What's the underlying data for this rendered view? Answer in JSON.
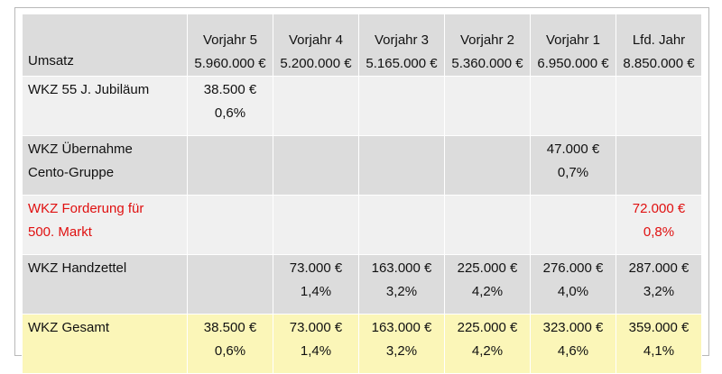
{
  "header": {
    "label": "Umsatz",
    "columns": [
      {
        "year": "Vorjahr 5",
        "revenue": "5.960.000 €"
      },
      {
        "year": "Vorjahr 4",
        "revenue": "5.200.000 €"
      },
      {
        "year": "Vorjahr 3",
        "revenue": "5.165.000 €"
      },
      {
        "year": "Vorjahr 2",
        "revenue": "5.360.000 €"
      },
      {
        "year": "Vorjahr 1",
        "revenue": "6.950.000 €"
      },
      {
        "year": "Lfd. Jahr",
        "revenue": "8.850.000 €"
      }
    ]
  },
  "rows": [
    {
      "label_lines": [
        "WKZ 55 J. Jubiläum",
        ""
      ],
      "cells": [
        {
          "amount": "38.500 €",
          "pct": "0,6%"
        },
        {
          "amount": "",
          "pct": ""
        },
        {
          "amount": "",
          "pct": ""
        },
        {
          "amount": "",
          "pct": ""
        },
        {
          "amount": "",
          "pct": ""
        },
        {
          "amount": "",
          "pct": ""
        }
      ]
    },
    {
      "label_lines": [
        "WKZ Übernahme",
        "Cento-Gruppe"
      ],
      "cells": [
        {
          "amount": "",
          "pct": ""
        },
        {
          "amount": "",
          "pct": ""
        },
        {
          "amount": "",
          "pct": ""
        },
        {
          "amount": "",
          "pct": ""
        },
        {
          "amount": "47.000 €",
          "pct": "0,7%"
        },
        {
          "amount": "",
          "pct": ""
        }
      ]
    },
    {
      "label_lines": [
        "WKZ Forderung für",
        "500. Markt"
      ],
      "highlight_color": "#e01010",
      "cells": [
        {
          "amount": "",
          "pct": ""
        },
        {
          "amount": "",
          "pct": ""
        },
        {
          "amount": "",
          "pct": ""
        },
        {
          "amount": "",
          "pct": ""
        },
        {
          "amount": "",
          "pct": ""
        },
        {
          "amount": "72.000 €",
          "pct": "0,8%"
        }
      ]
    },
    {
      "label_lines": [
        "WKZ Handzettel",
        ""
      ],
      "cells": [
        {
          "amount": "",
          "pct": ""
        },
        {
          "amount": "73.000 €",
          "pct": "1,4%"
        },
        {
          "amount": "163.000 €",
          "pct": "3,2%"
        },
        {
          "amount": "225.000 €",
          "pct": "4,2%"
        },
        {
          "amount": "276.000 €",
          "pct": "4,0%"
        },
        {
          "amount": "287.000 €",
          "pct": "3,2%"
        }
      ]
    },
    {
      "label_lines": [
        "WKZ Gesamt",
        ""
      ],
      "cells": [
        {
          "amount": "38.500 €",
          "pct": "0,6%"
        },
        {
          "amount": "73.000 €",
          "pct": "1,4%"
        },
        {
          "amount": "163.000 €",
          "pct": "3,2%"
        },
        {
          "amount": "225.000 €",
          "pct": "4,2%"
        },
        {
          "amount": "323.000 €",
          "pct": "4,6%"
        },
        {
          "amount": "359.000 €",
          "pct": "4,1%"
        }
      ]
    }
  ],
  "colors": {
    "header_bg": "#dcdcdc",
    "row_light_bg": "#f0f0f0",
    "row_dark_bg": "#dcdcdc",
    "total_bg": "#fbf6b8",
    "alert_text": "#e01010"
  }
}
